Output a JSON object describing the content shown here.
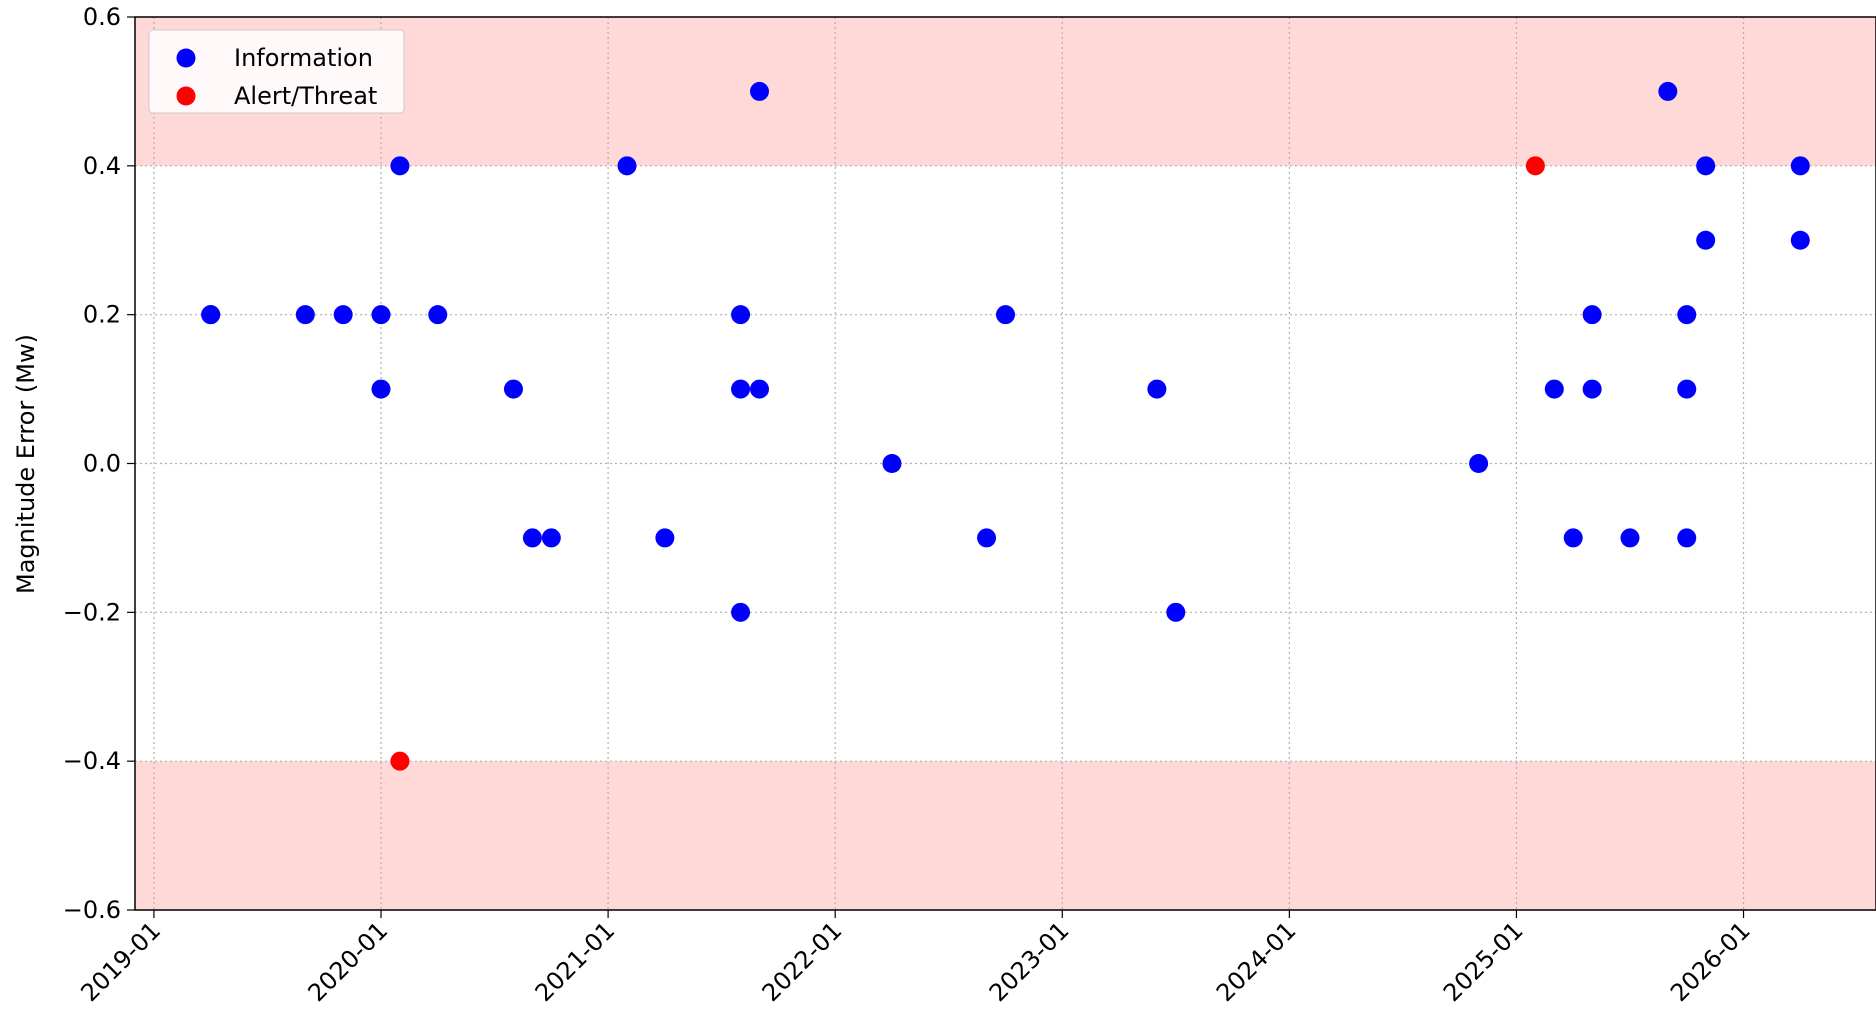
{
  "chart_data": {
    "type": "scatter",
    "y_label": "Magnitude Error (Mw)",
    "xlim": [
      "2018-12",
      "2026-08"
    ],
    "xticks": [
      "2019-01",
      "2020-01",
      "2021-01",
      "2022-01",
      "2023-01",
      "2024-01",
      "2025-01",
      "2026-01"
    ],
    "ylim": [
      -0.6,
      0.6
    ],
    "yticks": [
      {
        "value": -0.6,
        "label": "−0.6"
      },
      {
        "value": -0.4,
        "label": "−0.4"
      },
      {
        "value": -0.2,
        "label": "−0.2"
      },
      {
        "value": 0,
        "label": "0.0"
      },
      {
        "value": 0.2,
        "label": "0.2"
      },
      {
        "value": 0.4,
        "label": "0.4"
      },
      {
        "value": 0.6,
        "label": "0.6"
      }
    ],
    "grid": true,
    "bands": [
      {
        "range": [
          0.4,
          0.6
        ],
        "color": "#ffd8d8"
      },
      {
        "range": [
          -0.6,
          -0.4
        ],
        "color": "#ffd8d8"
      }
    ],
    "legend": "upper left",
    "series": [
      {
        "name": "Information",
        "color": "#0000ff",
        "x": [
          "2019-04",
          "2019-04",
          "2019-09",
          "2019-11",
          "2020-01",
          "2020-01",
          "2020-02",
          "2020-04",
          "2020-08",
          "2020-09",
          "2020-10",
          "2021-02",
          "2021-04",
          "2021-09",
          "2021-08",
          "2021-08",
          "2021-09",
          "2021-08",
          "2022-04",
          "2022-09",
          "2022-10",
          "2023-06",
          "2023-07",
          "2024-11",
          "2025-03",
          "2025-04",
          "2025-05",
          "2025-05",
          "2025-07",
          "2025-09",
          "2025-10",
          "2025-10",
          "2025-10",
          "2025-11",
          "2025-11",
          "2026-04",
          "2026-04"
        ],
        "values": [
          0.2,
          0.2,
          0.2,
          0.2,
          0.2,
          0.1,
          0.4,
          0.2,
          0.1,
          -0.1,
          -0.1,
          0.4,
          -0.1,
          0.5,
          0.2,
          0.1,
          0.1,
          -0.2,
          0.0,
          -0.1,
          0.2,
          0.1,
          -0.2,
          0.0,
          0.1,
          -0.1,
          0.2,
          0.1,
          -0.1,
          0.5,
          0.1,
          -0.1,
          0.2,
          0.4,
          0.3,
          0.4,
          0.3
        ]
      },
      {
        "name": "Alert/Threat",
        "color": "#ff0000",
        "x": [
          "2020-02",
          "2025-02"
        ],
        "values": [
          -0.4,
          0.4
        ]
      }
    ]
  }
}
